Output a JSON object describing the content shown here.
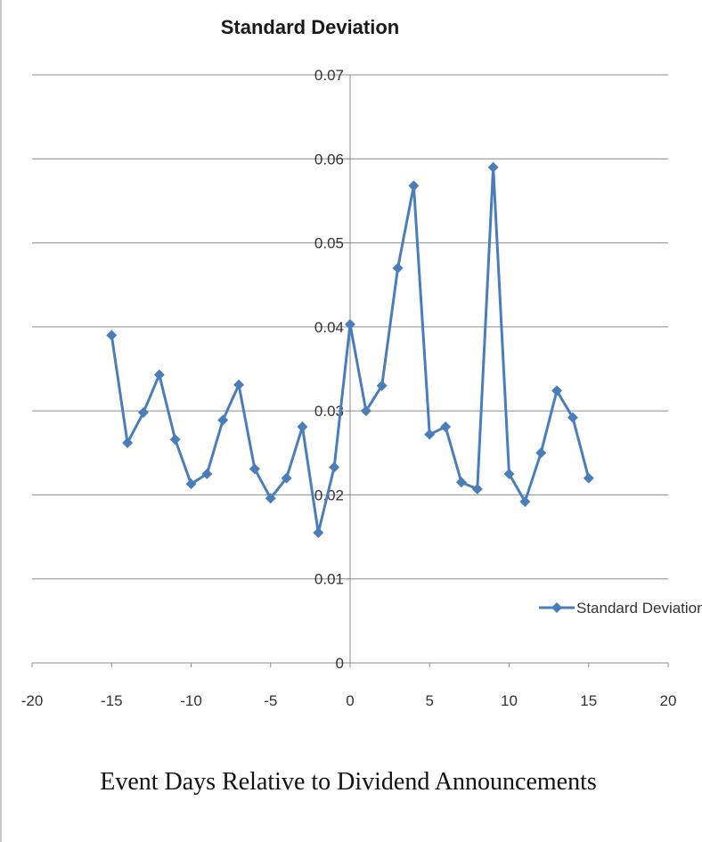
{
  "chart_data": {
    "type": "line",
    "title": "Standard Deviation",
    "xlabel": "Event Days Relative to Dividend Announcements",
    "ylabel": "",
    "xlim": [
      -20,
      20
    ],
    "ylim": [
      0,
      0.07
    ],
    "x_ticks": [
      "-20",
      "-15",
      "-10",
      "-5",
      "0",
      "5",
      "10",
      "15",
      "20"
    ],
    "y_ticks": [
      "0",
      "0.01",
      "0.02",
      "0.03",
      "0.04",
      "0.05",
      "0.06",
      "0.07"
    ],
    "grid": "horizontal",
    "legend_position": "right",
    "series": [
      {
        "name": "Standard Deviation",
        "color": "#4a7ebb",
        "marker": "diamond",
        "x": [
          -15,
          -14,
          -13,
          -12,
          -11,
          -10,
          -9,
          -8,
          -7,
          -6,
          -5,
          -4,
          -3,
          -2,
          -1,
          0,
          1,
          2,
          3,
          4,
          5,
          6,
          7,
          8,
          9,
          10,
          11,
          12,
          13,
          14,
          15
        ],
        "values": [
          0.039,
          0.0262,
          0.0298,
          0.0343,
          0.0266,
          0.0213,
          0.0225,
          0.0289,
          0.0331,
          0.0231,
          0.0196,
          0.022,
          0.0281,
          0.0155,
          0.0233,
          0.0403,
          0.03,
          0.033,
          0.047,
          0.0568,
          0.0272,
          0.0281,
          0.0215,
          0.0207,
          0.059,
          0.0225,
          0.0192,
          0.025,
          0.0324,
          0.0292,
          0.022
        ]
      }
    ]
  }
}
